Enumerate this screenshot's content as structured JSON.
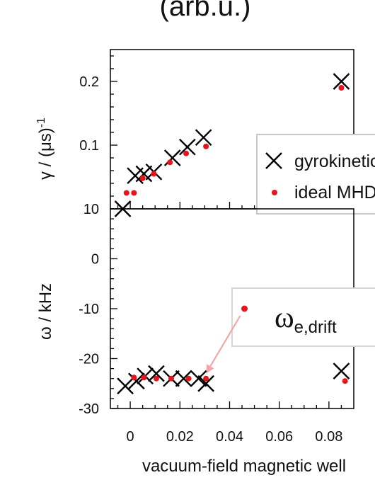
{
  "top_title_fragment": "(arb.u.)",
  "chart_data": [
    {
      "type": "scatter",
      "ylabel": "γ / (μs)-1",
      "ylabel_main": "γ / (μs)",
      "ylabel_sup": "-1",
      "ylim": [
        0,
        0.25
      ],
      "yticks": [
        0.1,
        0.2
      ],
      "ytick_labels": [
        "0.1",
        "0.2"
      ],
      "series": [
        {
          "name": "gyrokinetic",
          "marker": "x",
          "color": "#000000",
          "x": [
            -0.003,
            0.002,
            0.0055,
            0.0095,
            0.017,
            0.023,
            0.0295,
            0.085
          ],
          "y": [
            0.0,
            0.052,
            0.055,
            0.058,
            0.08,
            0.097,
            0.112,
            0.2
          ]
        },
        {
          "name": "ideal MHD",
          "marker": "dot",
          "color": "#e8141c",
          "x": [
            -0.0015,
            0.0015,
            0.005,
            0.0095,
            0.016,
            0.0225,
            0.0305,
            0.085
          ],
          "y": [
            0.025,
            0.025,
            0.048,
            0.055,
            0.073,
            0.087,
            0.098,
            0.19
          ]
        }
      ],
      "legend": {
        "position": "right",
        "entries": [
          {
            "label": "gyrokinetic",
            "marker": "x"
          },
          {
            "label": "ideal MHD",
            "marker": "dot"
          }
        ]
      }
    },
    {
      "type": "scatter",
      "ylabel": "ω / kHz",
      "ylim": [
        -30,
        10
      ],
      "yticks": [
        -30,
        -20,
        -10,
        0,
        10
      ],
      "ytick_labels": [
        "-30",
        "-20",
        "-10",
        "0",
        "10"
      ],
      "xlabel": "vacuum-field magnetic well",
      "xlim": [
        -0.008,
        0.09
      ],
      "xticks": [
        0,
        0.02,
        0.04,
        0.06,
        0.08
      ],
      "xtick_labels": [
        "0",
        "0.02",
        "0.04",
        "0.06",
        "0.08"
      ],
      "series": [
        {
          "name": "gyrokinetic",
          "marker": "x",
          "color": "#000000",
          "x": [
            -0.002,
            0.0025,
            0.006,
            0.0105,
            0.0165,
            0.0215,
            0.0275,
            0.0305,
            0.085
          ],
          "y": [
            -25.5,
            -24.5,
            -23.5,
            -23.0,
            -24.0,
            -24.0,
            -24.0,
            -25.0,
            -22.5
          ]
        },
        {
          "name": "ideal MHD",
          "marker": "dot",
          "color": "#e8141c",
          "x": [
            0.0015,
            0.0055,
            0.0105,
            0.0165,
            0.0235,
            0.0305,
            0.0865
          ],
          "y": [
            -23.8,
            -23.8,
            -24.0,
            -24.0,
            -24.0,
            -24.0,
            -24.5
          ]
        }
      ],
      "annotation": {
        "label_main": "ω",
        "label_sub": "e,drift",
        "point": {
          "x": 0.046,
          "y": -10.0,
          "color": "#e8141c"
        },
        "arrow_target": {
          "x": 0.0305,
          "y": -23.0
        },
        "arrow_color": "#f4a6a6"
      }
    }
  ]
}
